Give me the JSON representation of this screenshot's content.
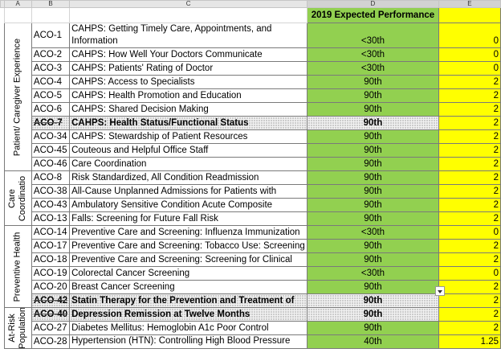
{
  "columns": [
    "A",
    "B",
    "C",
    "D",
    "E"
  ],
  "header": {
    "performance_title": "2019 Expected Performance"
  },
  "groups": [
    {
      "label": "Patient/ Caregiver Experience"
    },
    {
      "label": "Care Coordinatio"
    },
    {
      "label": "Preventive Health"
    },
    {
      "label": "At-Risk Population"
    }
  ],
  "rows": [
    {
      "code": "ACO-1",
      "desc": "CAHPS: Getting Timely Care, Appointments, and Information",
      "perf": "<30th",
      "val": "0"
    },
    {
      "code": "ACO-2",
      "desc": "CAHPS: How Well Your Doctors Communicate",
      "perf": "<30th",
      "val": "0"
    },
    {
      "code": "ACO-3",
      "desc": "CAHPS: Patients' Rating of Doctor",
      "perf": "<30th",
      "val": "0"
    },
    {
      "code": "ACO-4",
      "desc": "CAHPS: Access to Specialists",
      "perf": "90th",
      "val": "2"
    },
    {
      "code": "ACO-5",
      "desc": "CAHPS: Health Promotion and Education",
      "perf": "90th",
      "val": "2"
    },
    {
      "code": "ACO-6",
      "desc": "CAHPS: Shared Decision Making",
      "perf": "90th",
      "val": "2"
    },
    {
      "code": "ACO-7",
      "desc": "CAHPS: Health Status/Functional Status",
      "perf": "90th",
      "val": "2"
    },
    {
      "code": "ACO-34",
      "desc": "CAHPS: Stewardship of Patient Resources",
      "perf": "90th",
      "val": "2"
    },
    {
      "code": "ACO-45",
      "desc": "Couteous and Helpful Office Staff",
      "perf": "90th",
      "val": "2"
    },
    {
      "code": "ACO-46",
      "desc": "Care Coordination",
      "perf": "90th",
      "val": "2"
    },
    {
      "code": "ACO-8",
      "desc": "Risk Standardized, All Condition Readmission",
      "perf": "90th",
      "val": "2"
    },
    {
      "code": "ACO-38",
      "desc": "All-Cause Unplanned Admissions for Patients with",
      "perf": "90th",
      "val": "2"
    },
    {
      "code": "ACO-43",
      "desc": "Ambulatory Sensitive Condition Acute Composite",
      "perf": "90th",
      "val": "2"
    },
    {
      "code": "ACO-13",
      "desc": "Falls: Screening for Future Fall Risk",
      "perf": "90th",
      "val": "2"
    },
    {
      "code": "ACO-14",
      "desc": "Preventive Care and Screening: Influenza Immunization",
      "perf": "<30th",
      "val": "0"
    },
    {
      "code": "ACO-17",
      "desc": "Preventive Care and Screening: Tobacco Use: Screening",
      "perf": "90th",
      "val": "2"
    },
    {
      "code": "ACO-18",
      "desc": "Preventive Care and Screening: Screening for Clinical",
      "perf": "90th",
      "val": "2"
    },
    {
      "code": "ACO-19",
      "desc": "Colorectal Cancer Screening",
      "perf": "<30th",
      "val": "0"
    },
    {
      "code": "ACO-20",
      "desc": "Breast Cancer Screening",
      "perf": "90th",
      "val": "2"
    },
    {
      "code": "ACO-42",
      "desc": "Statin Therapy for the Prevention and Treatment of",
      "perf": "90th",
      "val": "2"
    },
    {
      "code": "ACO-40",
      "desc": "Depression Remission at Twelve Months",
      "perf": "90th",
      "val": "2"
    },
    {
      "code": "ACO-27",
      "desc": "Diabetes Mellitus: Hemoglobin A1c Poor Control",
      "perf": "90th",
      "val": "2"
    },
    {
      "code": "ACO-28",
      "desc": "Hypertension (HTN): Controlling High Blood Pressure",
      "perf": "40th",
      "val": "1.25"
    }
  ]
}
